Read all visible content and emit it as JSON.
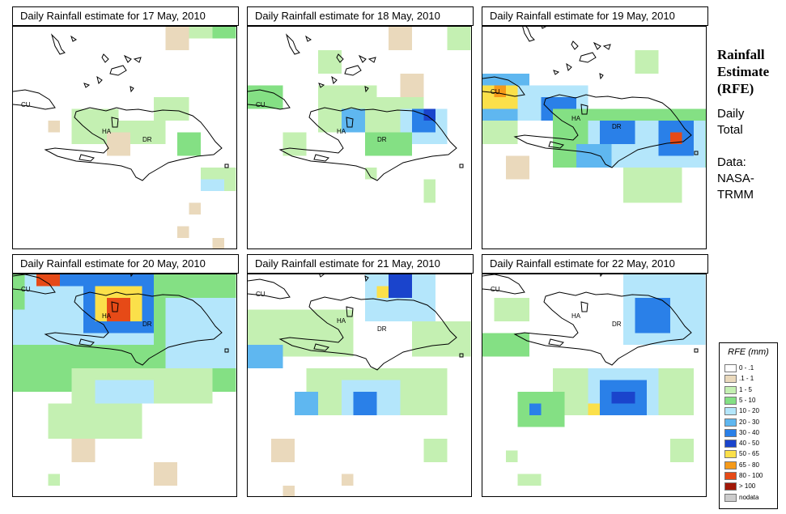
{
  "panels": [
    {
      "title": "Daily Rainfall estimate for  17 May, 2010"
    },
    {
      "title": "Daily Rainfall estimate for  18 May, 2010"
    },
    {
      "title": "Daily Rainfall estimate for  19 May, 2010"
    },
    {
      "title": "Daily Rainfall estimate for  20 May, 2010"
    },
    {
      "title": "Daily Rainfall estimate for  21 May, 2010"
    },
    {
      "title": "Daily Rainfall estimate for  22 May, 2010"
    }
  ],
  "map_labels": {
    "cuba": "CU",
    "haiti": "HA",
    "dominican_republic": "DR"
  },
  "side": {
    "title_line1": "Rainfall",
    "title_line2": "Estimate",
    "title_line3": "(RFE)",
    "daily": "Daily",
    "total": "Total",
    "data_label": "Data:",
    "source_line1": "NASA-",
    "source_line2": "TRMM"
  },
  "legend": {
    "title": "RFE (mm)",
    "items": [
      {
        "label": "0 - .1",
        "color": "#ffffff"
      },
      {
        "label": ".1 - 1",
        "color": "#ead9bc"
      },
      {
        "label": "1 - 5",
        "color": "#c4f0b2"
      },
      {
        "label": "5 - 10",
        "color": "#84e084"
      },
      {
        "label": "10 - 20",
        "color": "#b4e6fb"
      },
      {
        "label": "20 - 30",
        "color": "#5fb7f0"
      },
      {
        "label": "30 - 40",
        "color": "#2a80e8"
      },
      {
        "label": "40 - 50",
        "color": "#1a44cc"
      },
      {
        "label": "50 - 65",
        "color": "#fbe04a"
      },
      {
        "label": "65 - 80",
        "color": "#f59a1a"
      },
      {
        "label": "80 - 100",
        "color": "#e64a17"
      },
      {
        "label": "> 100",
        "color": "#a11808"
      },
      {
        "label": "nodata",
        "color": "#cccccc"
      }
    ]
  },
  "rainfall_grids": [
    {
      "day": "17 May, 2010",
      "patches": [
        {
          "col": 5,
          "row": 7,
          "w": 4,
          "h": 3,
          "cls": 2
        },
        {
          "col": 9,
          "row": 8,
          "w": 4,
          "h": 2,
          "cls": 2
        },
        {
          "col": 12,
          "row": 6,
          "w": 3,
          "h": 2,
          "cls": 2
        },
        {
          "col": 14,
          "row": 9,
          "w": 2,
          "h": 2,
          "cls": 3
        },
        {
          "col": 8,
          "row": 9,
          "w": 2,
          "h": 2,
          "cls": 1
        },
        {
          "col": 16,
          "row": 12,
          "w": 3,
          "h": 2,
          "cls": 2
        },
        {
          "col": 16,
          "row": 13,
          "w": 2,
          "h": 1,
          "cls": 4
        },
        {
          "col": 13,
          "row": 0,
          "w": 2,
          "h": 2,
          "cls": 1
        },
        {
          "col": 17,
          "row": 0,
          "w": 2,
          "h": 1,
          "cls": 3
        },
        {
          "col": 15,
          "row": 0,
          "w": 2,
          "h": 1,
          "cls": 2
        },
        {
          "col": 3,
          "row": 8,
          "w": 1,
          "h": 1,
          "cls": 1
        },
        {
          "col": 15,
          "row": 15,
          "w": 1,
          "h": 1,
          "cls": 1
        },
        {
          "col": 14,
          "row": 17,
          "w": 1,
          "h": 1,
          "cls": 1
        },
        {
          "col": 17,
          "row": 18,
          "w": 1,
          "h": 1,
          "cls": 1
        }
      ]
    },
    {
      "day": "18 May, 2010",
      "patches": [
        {
          "col": 0,
          "row": 5,
          "w": 3,
          "h": 2,
          "cls": 3
        },
        {
          "col": 6,
          "row": 5,
          "w": 5,
          "h": 4,
          "cls": 2
        },
        {
          "col": 11,
          "row": 6,
          "w": 4,
          "h": 3,
          "cls": 2
        },
        {
          "col": 13,
          "row": 7,
          "w": 4,
          "h": 3,
          "cls": 4
        },
        {
          "col": 14,
          "row": 7,
          "w": 2,
          "h": 2,
          "cls": 6
        },
        {
          "col": 15,
          "row": 7,
          "w": 1,
          "h": 1,
          "cls": 7
        },
        {
          "col": 8,
          "row": 7,
          "w": 2,
          "h": 2,
          "cls": 5
        },
        {
          "col": 10,
          "row": 9,
          "w": 4,
          "h": 2,
          "cls": 3
        },
        {
          "col": 3,
          "row": 9,
          "w": 2,
          "h": 2,
          "cls": 2
        },
        {
          "col": 13,
          "row": 4,
          "w": 2,
          "h": 2,
          "cls": 1
        },
        {
          "col": 6,
          "row": 2,
          "w": 2,
          "h": 2,
          "cls": 2
        },
        {
          "col": 12,
          "row": 0,
          "w": 2,
          "h": 2,
          "cls": 1
        },
        {
          "col": 15,
          "row": 13,
          "w": 1,
          "h": 2,
          "cls": 2
        },
        {
          "col": 10,
          "row": 12,
          "w": 1,
          "h": 1,
          "cls": 2
        },
        {
          "col": 17,
          "row": 0,
          "w": 2,
          "h": 2,
          "cls": 2
        }
      ]
    },
    {
      "day": "19 May, 2010",
      "patches": [
        {
          "col": 0,
          "row": 4,
          "w": 4,
          "h": 4,
          "cls": 5
        },
        {
          "col": 0,
          "row": 5,
          "w": 3,
          "h": 2,
          "cls": 8
        },
        {
          "col": 1,
          "row": 5,
          "w": 1,
          "h": 1,
          "cls": 9
        },
        {
          "col": 3,
          "row": 5,
          "w": 6,
          "h": 3,
          "cls": 4
        },
        {
          "col": 5,
          "row": 6,
          "w": 3,
          "h": 2,
          "cls": 6
        },
        {
          "col": 6,
          "row": 7,
          "w": 14,
          "h": 5,
          "cls": 3
        },
        {
          "col": 9,
          "row": 8,
          "w": 10,
          "h": 4,
          "cls": 4
        },
        {
          "col": 10,
          "row": 8,
          "w": 3,
          "h": 2,
          "cls": 6
        },
        {
          "col": 15,
          "row": 8,
          "w": 3,
          "h": 3,
          "cls": 6
        },
        {
          "col": 16,
          "row": 9,
          "w": 1,
          "h": 1,
          "cls": 10
        },
        {
          "col": 12,
          "row": 12,
          "w": 5,
          "h": 3,
          "cls": 2
        },
        {
          "col": 0,
          "row": 8,
          "w": 3,
          "h": 2,
          "cls": 2
        },
        {
          "col": 2,
          "row": 11,
          "w": 2,
          "h": 2,
          "cls": 1
        },
        {
          "col": 13,
          "row": 2,
          "w": 2,
          "h": 2,
          "cls": 2
        },
        {
          "col": 8,
          "row": 10,
          "w": 3,
          "h": 2,
          "cls": 5
        }
      ]
    },
    {
      "day": "20 May, 2010",
      "patches": [
        {
          "col": 0,
          "row": 0,
          "w": 19,
          "h": 10,
          "cls": 3
        },
        {
          "col": 1,
          "row": 0,
          "w": 11,
          "h": 6,
          "cls": 4
        },
        {
          "col": 6,
          "row": 0,
          "w": 6,
          "h": 5,
          "cls": 6
        },
        {
          "col": 7,
          "row": 1,
          "w": 4,
          "h": 3,
          "cls": 8
        },
        {
          "col": 8,
          "row": 2,
          "w": 2,
          "h": 2,
          "cls": 10
        },
        {
          "col": 2,
          "row": 0,
          "w": 2,
          "h": 1,
          "cls": 10
        },
        {
          "col": 4,
          "row": 0,
          "w": 2,
          "h": 1,
          "cls": 6
        },
        {
          "col": 0,
          "row": 3,
          "w": 3,
          "h": 3,
          "cls": 4
        },
        {
          "col": 5,
          "row": 8,
          "w": 12,
          "h": 3,
          "cls": 2
        },
        {
          "col": 7,
          "row": 9,
          "w": 5,
          "h": 2,
          "cls": 4
        },
        {
          "col": 13,
          "row": 2,
          "w": 6,
          "h": 6,
          "cls": 4
        },
        {
          "col": 3,
          "row": 11,
          "w": 8,
          "h": 3,
          "cls": 2
        },
        {
          "col": 5,
          "row": 14,
          "w": 2,
          "h": 2,
          "cls": 1
        },
        {
          "col": 3,
          "row": 17,
          "w": 1,
          "h": 1,
          "cls": 2
        },
        {
          "col": 12,
          "row": 16,
          "w": 2,
          "h": 2,
          "cls": 1
        }
      ]
    },
    {
      "day": "21 May, 2010",
      "patches": [
        {
          "col": 0,
          "row": 3,
          "w": 9,
          "h": 4,
          "cls": 2
        },
        {
          "col": 10,
          "row": 0,
          "w": 6,
          "h": 4,
          "cls": 4
        },
        {
          "col": 12,
          "row": 0,
          "w": 2,
          "h": 2,
          "cls": 7
        },
        {
          "col": 11,
          "row": 1,
          "w": 1,
          "h": 1,
          "cls": 8
        },
        {
          "col": 0,
          "row": 6,
          "w": 3,
          "h": 2,
          "cls": 5
        },
        {
          "col": 5,
          "row": 8,
          "w": 12,
          "h": 4,
          "cls": 2
        },
        {
          "col": 8,
          "row": 9,
          "w": 5,
          "h": 3,
          "cls": 4
        },
        {
          "col": 9,
          "row": 10,
          "w": 2,
          "h": 2,
          "cls": 6
        },
        {
          "col": 4,
          "row": 10,
          "w": 2,
          "h": 2,
          "cls": 5
        },
        {
          "col": 14,
          "row": 4,
          "w": 5,
          "h": 3,
          "cls": 2
        },
        {
          "col": 2,
          "row": 14,
          "w": 2,
          "h": 2,
          "cls": 1
        },
        {
          "col": 15,
          "row": 14,
          "w": 2,
          "h": 2,
          "cls": 2
        },
        {
          "col": 3,
          "row": 18,
          "w": 1,
          "h": 1,
          "cls": 1
        },
        {
          "col": 8,
          "row": 17,
          "w": 1,
          "h": 1,
          "cls": 1
        }
      ]
    },
    {
      "day": "22 May, 2010",
      "patches": [
        {
          "col": 0,
          "row": 5,
          "w": 4,
          "h": 2,
          "cls": 3
        },
        {
          "col": 12,
          "row": 0,
          "w": 7,
          "h": 6,
          "cls": 4
        },
        {
          "col": 13,
          "row": 2,
          "w": 3,
          "h": 3,
          "cls": 6
        },
        {
          "col": 6,
          "row": 8,
          "w": 12,
          "h": 4,
          "cls": 2
        },
        {
          "col": 9,
          "row": 8,
          "w": 6,
          "h": 4,
          "cls": 4
        },
        {
          "col": 10,
          "row": 9,
          "w": 4,
          "h": 3,
          "cls": 6
        },
        {
          "col": 11,
          "row": 10,
          "w": 2,
          "h": 1,
          "cls": 7
        },
        {
          "col": 9,
          "row": 11,
          "w": 1,
          "h": 1,
          "cls": 8
        },
        {
          "col": 3,
          "row": 10,
          "w": 4,
          "h": 3,
          "cls": 3
        },
        {
          "col": 4,
          "row": 11,
          "w": 1,
          "h": 1,
          "cls": 6
        },
        {
          "col": 1,
          "row": 2,
          "w": 3,
          "h": 2,
          "cls": 2
        },
        {
          "col": 2,
          "row": 15,
          "w": 1,
          "h": 1,
          "cls": 2
        },
        {
          "col": 3,
          "row": 17,
          "w": 2,
          "h": 1,
          "cls": 2
        },
        {
          "col": 16,
          "row": 14,
          "w": 2,
          "h": 2,
          "cls": 2
        }
      ]
    }
  ]
}
